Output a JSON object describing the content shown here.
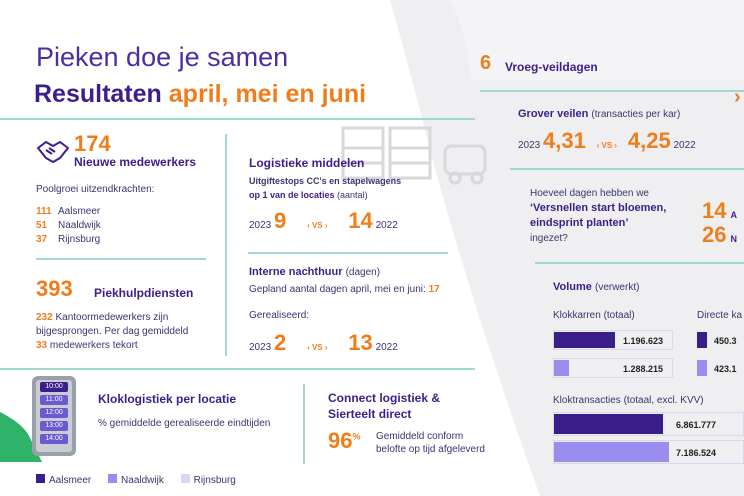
{
  "colors": {
    "purple": "#3c1e8a",
    "orange": "#f07d1a",
    "teal": "#9fd8cc",
    "lilac": "#9b8cf0",
    "pale": "#d9d6f0",
    "green": "#2fb36a"
  },
  "header": {
    "script": "Pieken doe je samen",
    "title_part1": "Resultaten",
    "title_part2": "april, mei en juni"
  },
  "new_staff": {
    "icon": "handshake-icon",
    "count": "174",
    "label": "Nieuwe medewerkers",
    "subtitle": "Poolgroei uitzendkrachten:",
    "rows": [
      {
        "n": "111",
        "loc": "Aalsmeer"
      },
      {
        "n": "51",
        "loc": "Naaldwijk"
      },
      {
        "n": "37",
        "loc": "Rijnsburg"
      }
    ]
  },
  "peak_services": {
    "count": "393",
    "label": "Piekhulpdiensten",
    "line1_num": "232",
    "line1_text": "Kantoormedewerkers zijn",
    "line2": "bijgesprongen. Per dag gemiddeld",
    "line3_num": "33",
    "line3_text": "medewerkers tekort"
  },
  "logistics": {
    "title": "Logistieke middelen",
    "sub1": "Uitgiftestops CC's en stapelwagens",
    "sub2": "op 1 van de locaties",
    "sub2_suffix": "(aantal)",
    "y1": "2023",
    "v1": "9",
    "vs": "VS",
    "v2": "14",
    "y2": "2022"
  },
  "night_rent": {
    "title": "Interne nachthuur",
    "title_suffix": "(dagen)",
    "planned": "Gepland aantal dagen april, mei en juni:",
    "planned_val": "17",
    "realised": "Gerealiseerd:",
    "y1": "2023",
    "v1": "2",
    "vs": "VS",
    "v2": "13",
    "y2": "2022"
  },
  "clock_logistics": {
    "title": "Kloklogistiek per locatie",
    "sub": "% gemiddelde gerealiseerde eindtijden",
    "phone_times": [
      "10:00",
      "11:00",
      "12:00",
      "13:00",
      "14:00"
    ]
  },
  "connect": {
    "title1": "Connect logistiek &",
    "title2": "Sierteelt direct",
    "pct": "96",
    "pct_sign": "%",
    "line1": "Gemiddeld conform",
    "line2": "belofte op tijd afgeleverd"
  },
  "legend": [
    {
      "label": "Aalsmeer",
      "color": "#3c1e8a"
    },
    {
      "label": "Naaldwijk",
      "color": "#9b8cf0"
    },
    {
      "label": "Rijnsburg",
      "color": "#d9d6f0"
    }
  ],
  "early_auction": {
    "count": "6",
    "label": "Vroeg-veildagen"
  },
  "coarse": {
    "title": "Grover veilen",
    "title_suffix": "(transacties per kar)",
    "y1": "2023",
    "v1": "4,31",
    "vs": "VS",
    "v2": "4,25",
    "y2": "2022"
  },
  "accelerate": {
    "q1": "Hoeveel dagen hebben we",
    "q2": "‘Versnellen start bloemen,",
    "q3": "eindsprint planten’",
    "q4": "ingezet?",
    "n1": "14",
    "n1_suffix": "A",
    "n2": "26",
    "n2_suffix": "N"
  },
  "volume": {
    "title": "Volume",
    "title_suffix": "(verwerkt)",
    "carts": {
      "title": "Klokkarren (totaal)",
      "bars": [
        {
          "value": "1.196.623",
          "level": 1196623
        },
        {
          "value": "1.288.215",
          "level": 1288215
        }
      ]
    },
    "direct": {
      "title": "Directe ka",
      "bars": [
        {
          "value": "450.3"
        },
        {
          "value": "423.1"
        }
      ]
    },
    "transactions": {
      "title": "Kloktransacties (totaal, excl. KVV)",
      "bars": [
        {
          "value": "6.861.777",
          "level": 6861777
        },
        {
          "value": "7.186.524",
          "level": 7186524
        }
      ]
    }
  }
}
